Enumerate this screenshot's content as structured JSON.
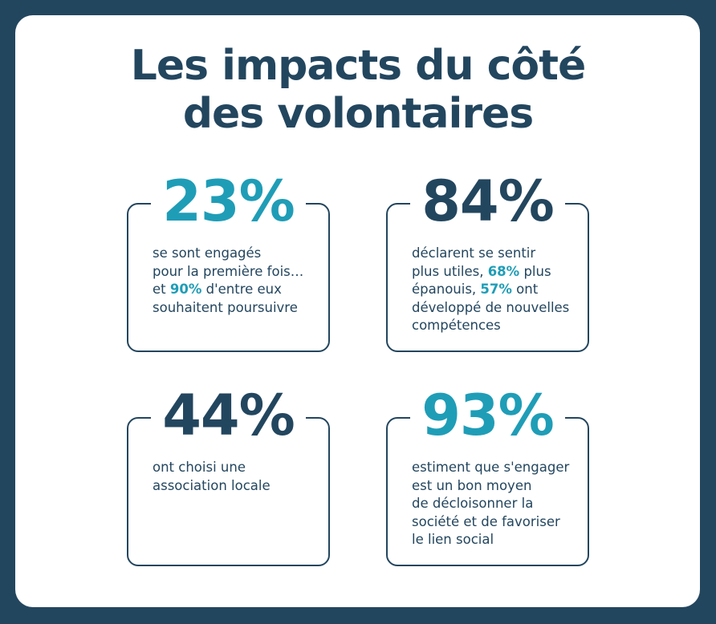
{
  "title": {
    "line1": "Les impacts du côté",
    "line2": "des volontaires"
  },
  "colors": {
    "background": "#23465f",
    "card": "#ffffff",
    "navy": "#23465f",
    "teal": "#1f9db7"
  },
  "stats": [
    {
      "value": "23%",
      "value_color": "teal",
      "lines": [
        "se sont engagés",
        "pour la première fois…"
      ],
      "line3_prefix": "et ",
      "line3_highlight": "90%",
      "line3_suffix": " d'entre eux",
      "line4": "souhaitent poursuivre"
    },
    {
      "value": "84%",
      "value_color": "navy",
      "line1": "déclarent se sentir",
      "line2_prefix": "plus utiles, ",
      "line2_highlight": "68%",
      "line2_suffix": " plus",
      "line3_prefix": "épanouis, ",
      "line3_highlight": "57%",
      "line3_suffix": " ont",
      "line4": "développé de nouvelles",
      "line5": "compétences"
    },
    {
      "value": "44%",
      "value_color": "navy",
      "lines": [
        "ont choisi une",
        "association locale"
      ]
    },
    {
      "value": "93%",
      "value_color": "teal",
      "lines": [
        "estiment que s'engager",
        "est un bon moyen",
        "de décloisonner la",
        "société et de favoriser",
        "le lien social"
      ]
    }
  ]
}
